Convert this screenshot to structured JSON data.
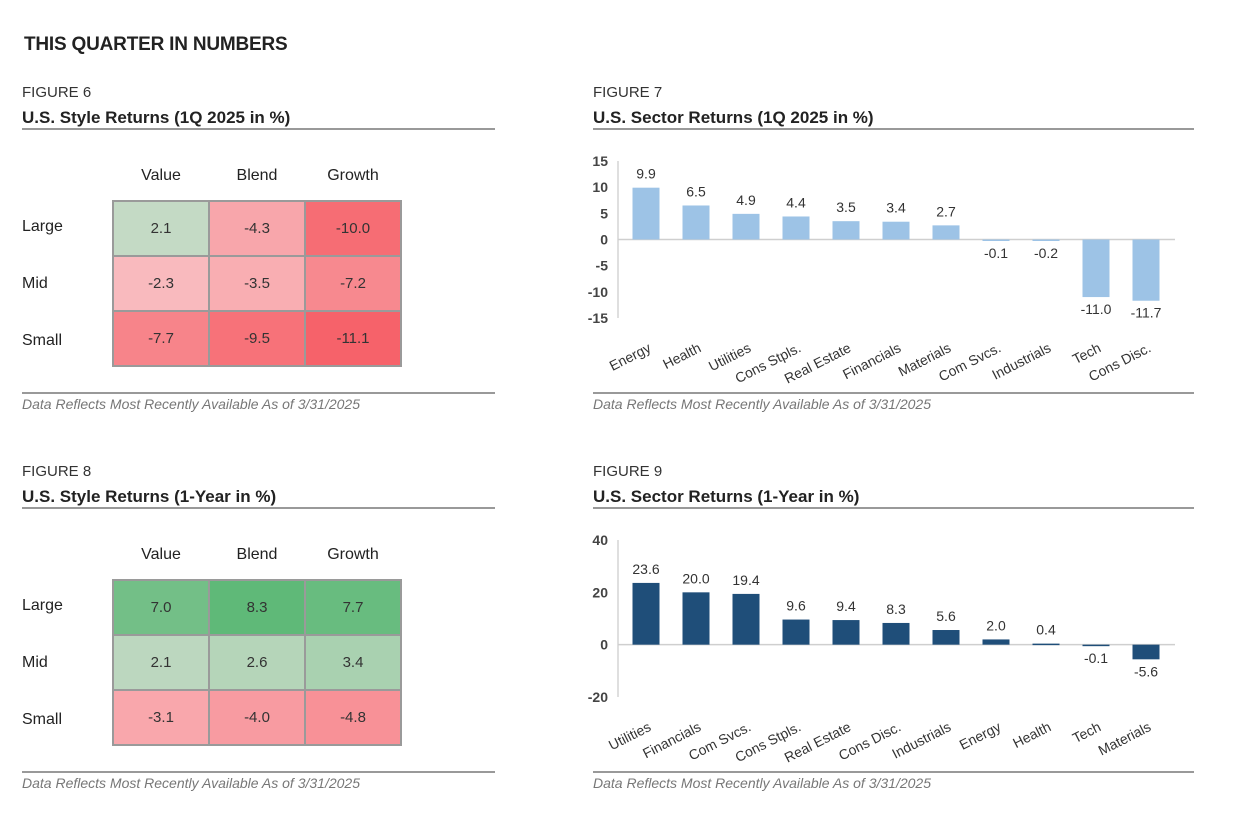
{
  "page_title": "THIS QUARTER IN NUMBERS",
  "note": "Data Reflects Most Recently Available As of 3/31/2025",
  "colors": {
    "heat_green": "#5fb978",
    "heat_red": "#f6626a",
    "bar_light_blue": "#9dc3e6",
    "bar_dark_navy": "#1f4e79",
    "rule_gray": "#999999"
  },
  "fig6": {
    "number": "FIGURE 6",
    "title": "U.S. Style Returns (1Q 2025 in %)",
    "columns": [
      "Value",
      "Blend",
      "Growth"
    ],
    "rows": [
      "Large",
      "Mid",
      "Small"
    ],
    "values": [
      [
        "2.1",
        "-4.3",
        "-10.0"
      ],
      [
        "-2.3",
        "-3.5",
        "-7.2"
      ],
      [
        "-7.7",
        "-9.5",
        "-11.1"
      ]
    ]
  },
  "fig8": {
    "number": "FIGURE 8",
    "title": "U.S. Style Returns (1-Year in %)",
    "columns": [
      "Value",
      "Blend",
      "Growth"
    ],
    "rows": [
      "Large",
      "Mid",
      "Small"
    ],
    "values": [
      [
        "7.0",
        "8.3",
        "7.7"
      ],
      [
        "2.1",
        "2.6",
        "3.4"
      ],
      [
        "-3.1",
        "-4.0",
        "-4.8"
      ]
    ]
  },
  "fig7": {
    "number": "FIGURE 7",
    "title": "U.S. Sector Returns (1Q 2025 in %)"
  },
  "fig9": {
    "number": "FIGURE 9",
    "title": "U.S. Sector Returns (1-Year in %)"
  },
  "chart_data": [
    {
      "type": "heatmap",
      "title": "U.S. Style Returns (1Q 2025 in %)",
      "x": [
        "Value",
        "Blend",
        "Growth"
      ],
      "y": [
        "Large",
        "Mid",
        "Small"
      ],
      "values": [
        [
          2.1,
          -4.3,
          -10.0
        ],
        [
          -2.3,
          -3.5,
          -7.2
        ],
        [
          -7.7,
          -9.5,
          -11.1
        ]
      ]
    },
    {
      "type": "bar",
      "title": "U.S. Sector Returns (1Q 2025 in %)",
      "categories": [
        "Energy",
        "Health",
        "Utilities",
        "Cons Stpls.",
        "Real Estate",
        "Financials",
        "Materials",
        "Com Svcs.",
        "Industrials",
        "Tech",
        "Cons Disc."
      ],
      "values": [
        9.9,
        6.5,
        4.9,
        4.4,
        3.5,
        3.4,
        2.7,
        -0.1,
        -0.2,
        -11.0,
        -11.7
      ],
      "labels": [
        "9.9",
        "6.5",
        "4.9",
        "4.4",
        "3.5",
        "3.4",
        "2.7",
        "-0.1",
        "-0.2",
        "-11.0",
        "-11.7"
      ],
      "ylim": [
        -15,
        15
      ],
      "yticks": [
        15,
        10,
        5,
        0,
        -5,
        -10,
        -15
      ],
      "grid": false,
      "color": "#9dc3e6"
    },
    {
      "type": "heatmap",
      "title": "U.S. Style Returns (1-Year in %)",
      "x": [
        "Value",
        "Blend",
        "Growth"
      ],
      "y": [
        "Large",
        "Mid",
        "Small"
      ],
      "values": [
        [
          7.0,
          8.3,
          7.7
        ],
        [
          2.1,
          2.6,
          3.4
        ],
        [
          -3.1,
          -4.0,
          -4.8
        ]
      ]
    },
    {
      "type": "bar",
      "title": "U.S. Sector Returns (1-Year in %)",
      "categories": [
        "Utilities",
        "Financials",
        "Com Svcs.",
        "Cons Stpls.",
        "Real Estate",
        "Cons Disc.",
        "Industrials",
        "Energy",
        "Health",
        "Tech",
        "Materials"
      ],
      "values": [
        23.6,
        20.0,
        19.4,
        9.6,
        9.4,
        8.3,
        5.6,
        2.0,
        0.4,
        -0.1,
        -5.6
      ],
      "labels": [
        "23.6",
        "20.0",
        "19.4",
        "9.6",
        "9.4",
        "8.3",
        "5.6",
        "2.0",
        "0.4",
        "-0.1",
        "-5.6"
      ],
      "ylim": [
        -20,
        40
      ],
      "yticks": [
        40,
        20,
        0,
        -20
      ],
      "grid": false,
      "color": "#1f4e79"
    }
  ]
}
